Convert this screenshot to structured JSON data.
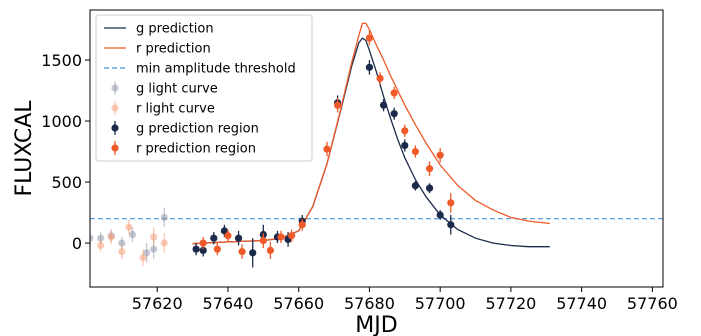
{
  "chart_data": {
    "type": "scatter",
    "xlabel": "MJD",
    "ylabel": "FLUXCAL",
    "xlim": [
      57601,
      57763
    ],
    "ylim": [
      -360,
      1910
    ],
    "xticks": [
      57620,
      57640,
      57660,
      57680,
      57700,
      57720,
      57740,
      57760
    ],
    "yticks": [
      0,
      500,
      1000,
      1500
    ],
    "grid": false,
    "legend_position": "top-left",
    "threshold": {
      "name": "min amplitude threshold",
      "value": 200,
      "color": "#4a90d9"
    },
    "series": [
      {
        "name": "g prediction",
        "kind": "line",
        "color": "#1b2a4a",
        "x": [
          57630,
          57640,
          57650,
          57655,
          57660,
          57664,
          57668,
          57672,
          57675,
          57677,
          57678,
          57679,
          57680,
          57682,
          57684,
          57686,
          57688,
          57690,
          57693,
          57696,
          57700,
          57705,
          57710,
          57715,
          57720,
          57725,
          57731
        ],
        "y": [
          -5,
          10,
          20,
          40,
          100,
          300,
          650,
          1100,
          1450,
          1640,
          1680,
          1660,
          1580,
          1400,
          1200,
          1020,
          850,
          700,
          520,
          380,
          230,
          110,
          40,
          0,
          -20,
          -30,
          -30
        ]
      },
      {
        "name": "r prediction",
        "kind": "line",
        "color": "#f05a28",
        "x": [
          57630,
          57640,
          57650,
          57655,
          57660,
          57664,
          57668,
          57672,
          57675,
          57677,
          57678,
          57679,
          57680,
          57682,
          57684,
          57686,
          57688,
          57690,
          57693,
          57696,
          57700,
          57705,
          57710,
          57715,
          57720,
          57725,
          57731
        ],
        "y": [
          -5,
          10,
          20,
          40,
          100,
          300,
          650,
          1110,
          1480,
          1700,
          1800,
          1800,
          1750,
          1620,
          1500,
          1370,
          1250,
          1130,
          970,
          820,
          640,
          470,
          350,
          270,
          210,
          180,
          160
        ]
      },
      {
        "name": "g light curve",
        "kind": "points",
        "color": "#8a92a8",
        "opacity": 0.5,
        "x": [
          57601,
          57604,
          57607,
          57610,
          57613,
          57617,
          57619,
          57622
        ],
        "y": [
          40,
          40,
          60,
          0,
          70,
          -80,
          -50,
          210
        ],
        "err": [
          60,
          50,
          50,
          50,
          60,
          80,
          80,
          80
        ]
      },
      {
        "name": "r light curve",
        "kind": "points",
        "color": "#f5a07a",
        "opacity": 0.55,
        "x": [
          57604,
          57607,
          57610,
          57612,
          57616,
          57619,
          57622
        ],
        "y": [
          -20,
          50,
          -70,
          130,
          -120,
          50,
          0
        ],
        "err": [
          50,
          60,
          60,
          60,
          70,
          80,
          80
        ]
      },
      {
        "name": "g  prediction region",
        "kind": "points",
        "color": "#1b2a4a",
        "x": [
          57631,
          57633,
          57636,
          57639,
          57643,
          57647,
          57650,
          57654,
          57657,
          57661,
          57671,
          57680,
          57684,
          57687,
          57690,
          57693,
          57697,
          57700,
          57703
        ],
        "y": [
          -50,
          -60,
          40,
          100,
          40,
          -80,
          70,
          50,
          30,
          180,
          1150,
          1440,
          1130,
          1060,
          800,
          470,
          450,
          230,
          150
        ],
        "err": [
          50,
          50,
          50,
          50,
          60,
          120,
          80,
          50,
          60,
          50,
          60,
          60,
          50,
          50,
          50,
          40,
          40,
          40,
          80
        ]
      },
      {
        "name": "r  prediction region",
        "kind": "points",
        "color": "#f05a28",
        "x": [
          57633,
          57637,
          57640,
          57644,
          57650,
          57652,
          57655,
          57658,
          57661,
          57668,
          57671,
          57680,
          57683,
          57687,
          57690,
          57693,
          57697,
          57700,
          57703
        ],
        "y": [
          0,
          -50,
          60,
          -70,
          20,
          -60,
          50,
          60,
          150,
          770,
          1130,
          1680,
          1350,
          1230,
          920,
          750,
          610,
          720,
          330
        ],
        "err": [
          50,
          50,
          50,
          60,
          60,
          70,
          50,
          50,
          50,
          60,
          60,
          60,
          50,
          50,
          50,
          50,
          60,
          60,
          80
        ]
      }
    ]
  }
}
